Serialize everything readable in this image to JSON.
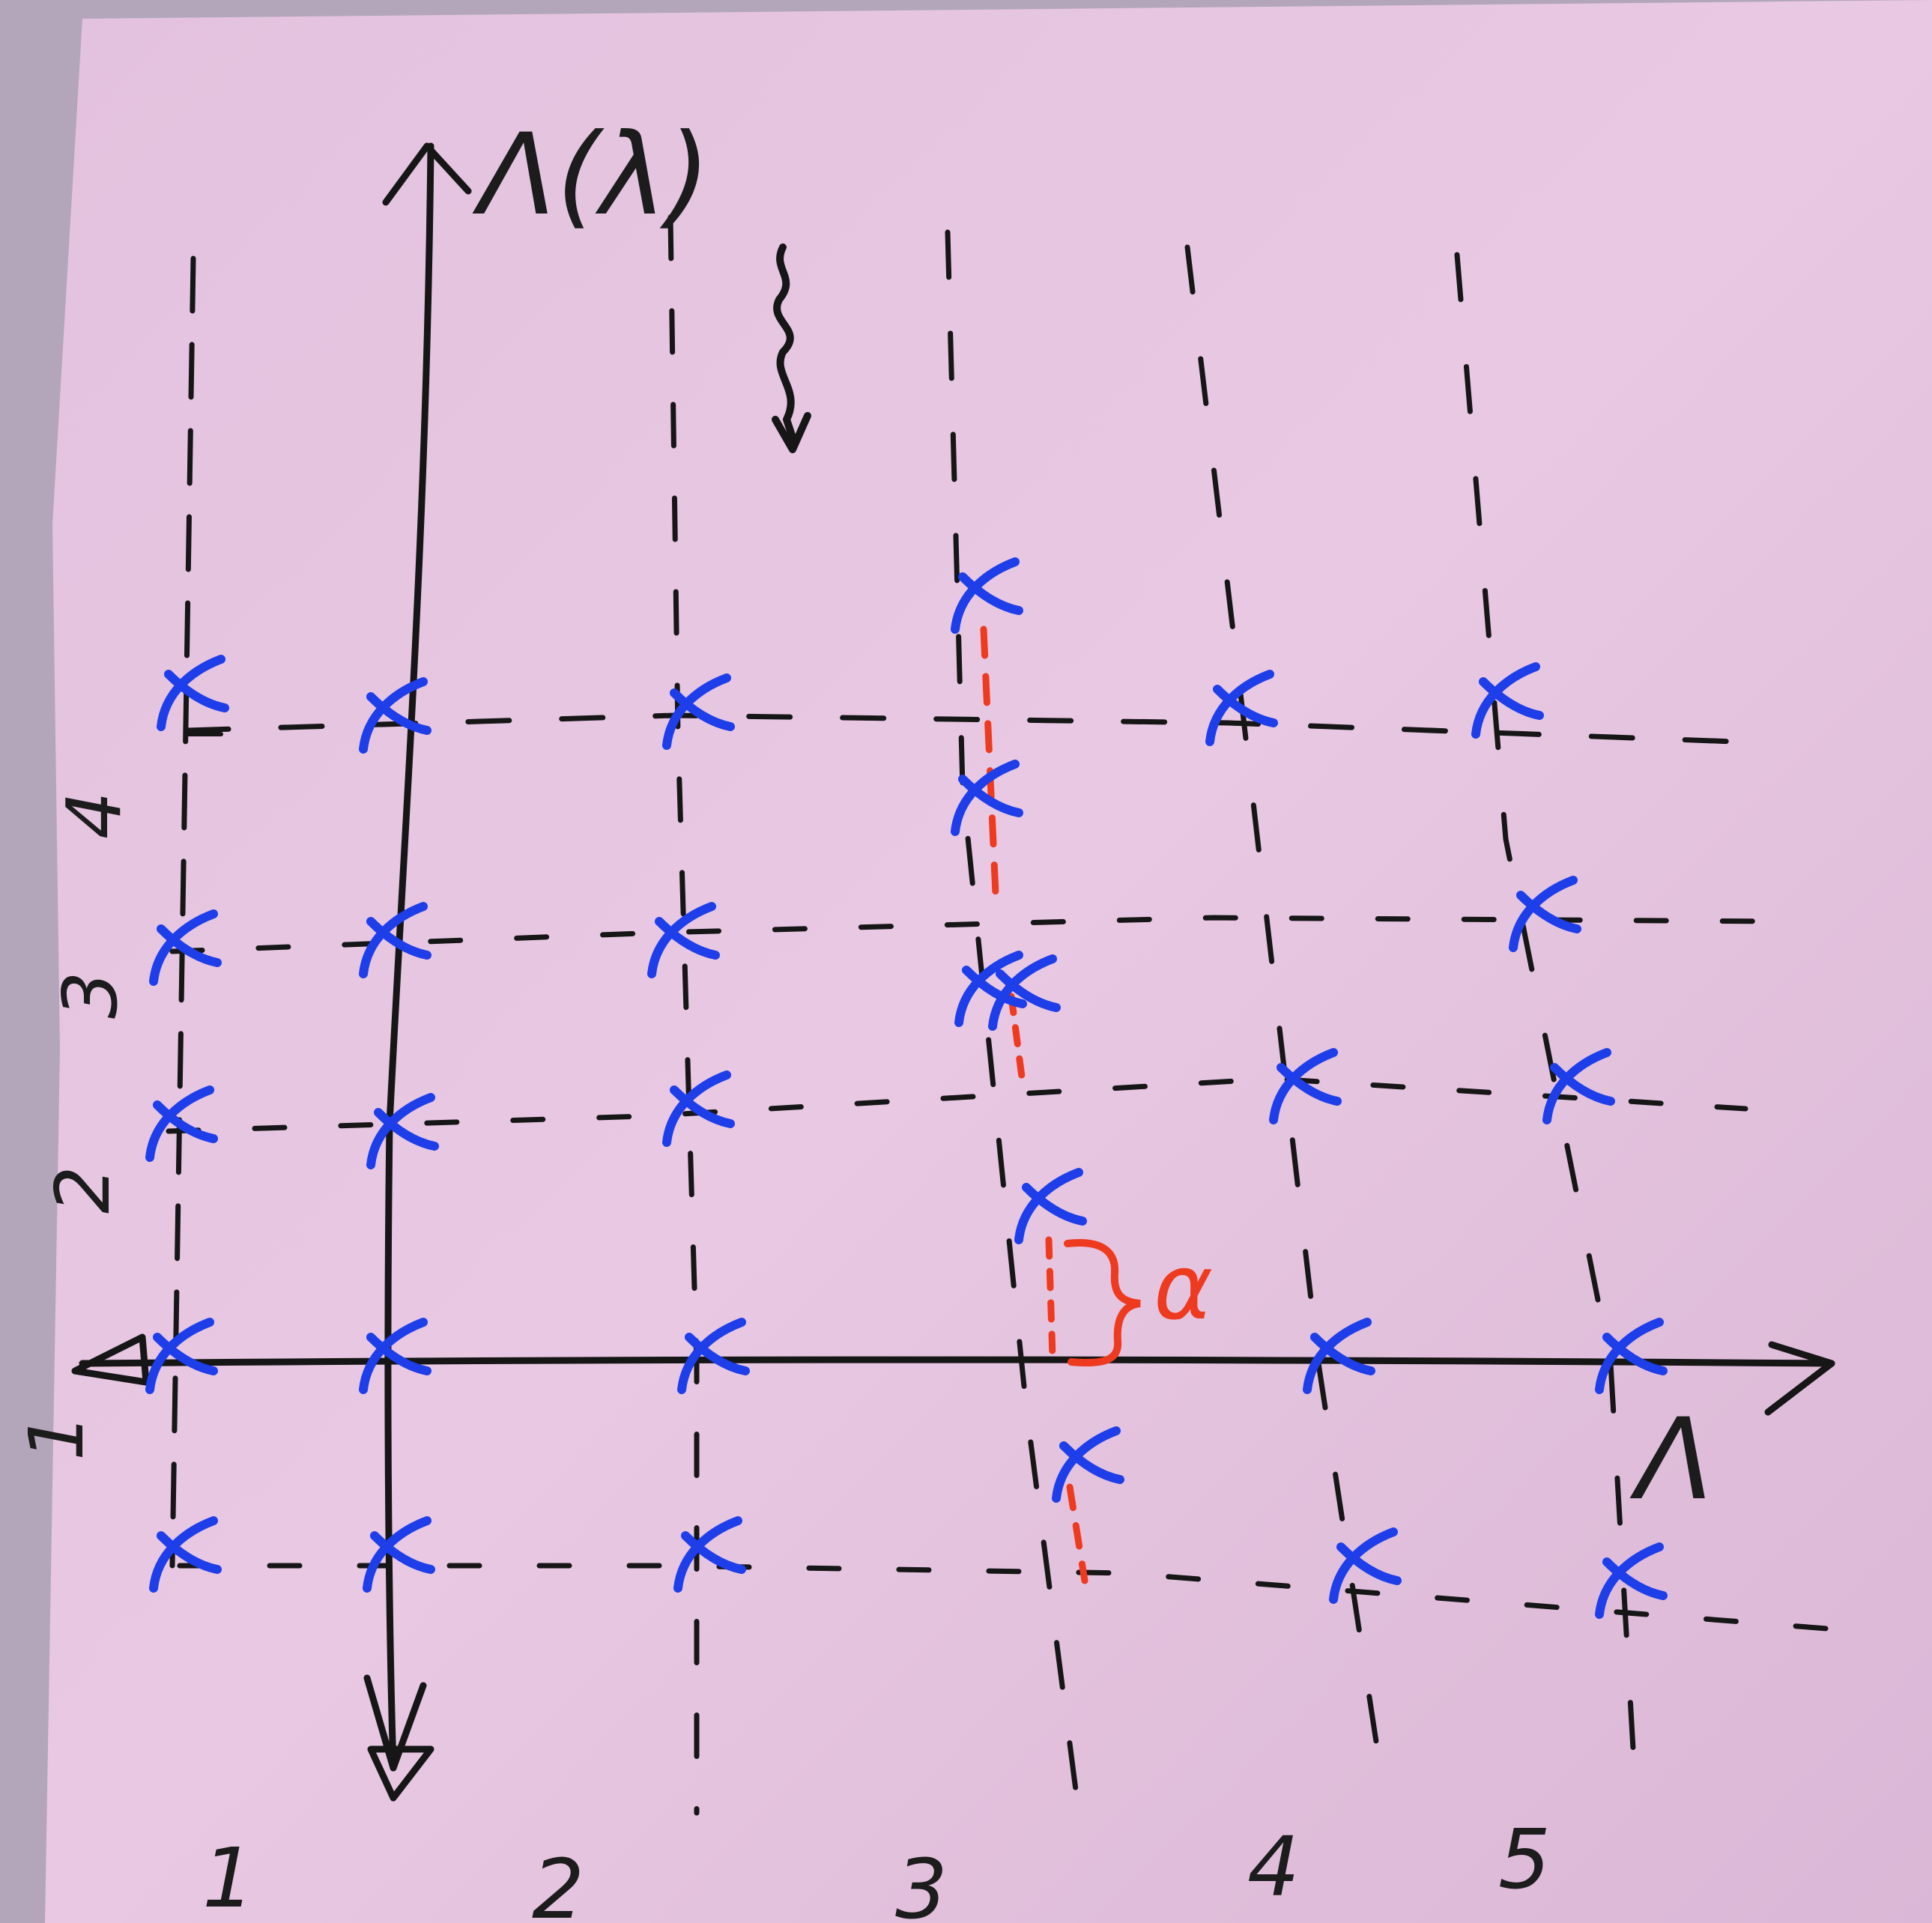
{
  "axis_labels": {
    "vertical": "Λ(λ)",
    "horizontal": "Λ"
  },
  "column_labels": [
    "1",
    "2",
    "3",
    "4",
    "5"
  ],
  "row_labels": [
    "1",
    "2",
    "3",
    "4"
  ],
  "offset_label": "α",
  "colors": {
    "paper": "#e6c4e0",
    "ink": "#161616",
    "marker_blue": "#1d3ee8",
    "marker_red": "#ee3a1e"
  }
}
